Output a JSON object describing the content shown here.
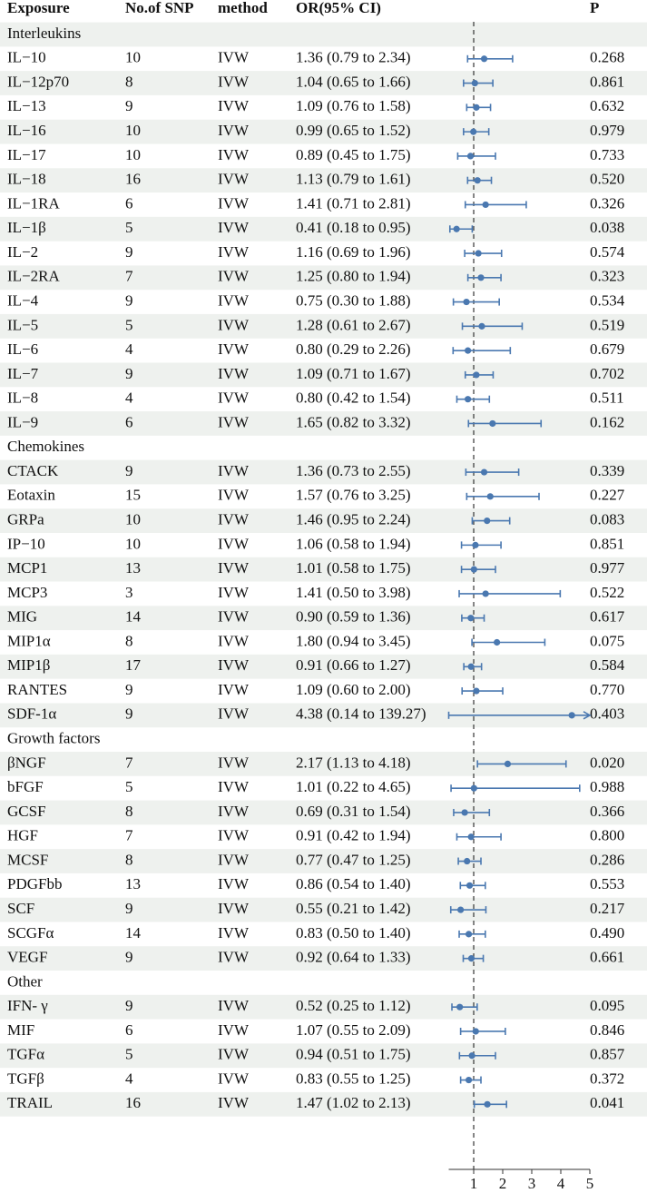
{
  "chart_data": {
    "type": "forest",
    "columns": [
      "Exposure",
      "No.of SNP",
      "method",
      "OR(95% CI)",
      "P"
    ],
    "xlim": [
      0.14,
      5
    ],
    "xticks": [
      1,
      2,
      3,
      4,
      5
    ],
    "ref_line": 1,
    "color": "#4a78b0",
    "highlight_color": "#e8191b",
    "groups": [
      {
        "name": "Interleukins",
        "rows": [
          {
            "exposure": "IL−10",
            "snp": 10,
            "method": "IVW",
            "or_ci": "1.36 (0.79 to 2.34)",
            "p": "0.268",
            "or": 1.36,
            "lower": 0.79,
            "upper": 2.34
          },
          {
            "exposure": "IL−12p70",
            "snp": 8,
            "method": "IVW",
            "or_ci": "1.04 (0.65 to 1.66)",
            "p": "0.861",
            "or": 1.04,
            "lower": 0.65,
            "upper": 1.66
          },
          {
            "exposure": "IL−13",
            "snp": 9,
            "method": "IVW",
            "or_ci": "1.09 (0.76 to 1.58)",
            "p": "0.632",
            "or": 1.09,
            "lower": 0.76,
            "upper": 1.58
          },
          {
            "exposure": "IL−16",
            "snp": 10,
            "method": "IVW",
            "or_ci": "0.99 (0.65 to 1.52)",
            "p": "0.979",
            "or": 0.99,
            "lower": 0.65,
            "upper": 1.52
          },
          {
            "exposure": "IL−17",
            "snp": 10,
            "method": "IVW",
            "or_ci": "0.89 (0.45 to 1.75)",
            "p": "0.733",
            "or": 0.89,
            "lower": 0.45,
            "upper": 1.75
          },
          {
            "exposure": "IL−18",
            "snp": 16,
            "method": "IVW",
            "or_ci": "1.13 (0.79 to 1.61)",
            "p": "0.520",
            "or": 1.13,
            "lower": 0.79,
            "upper": 1.61
          },
          {
            "exposure": "IL−1RA",
            "snp": 6,
            "method": "IVW",
            "or_ci": "1.41 (0.71 to 2.81)",
            "p": "0.326",
            "or": 1.41,
            "lower": 0.71,
            "upper": 2.81
          },
          {
            "exposure": "IL−1β",
            "snp": 5,
            "method": "IVW",
            "or_ci": "0.41 (0.18 to 0.95)",
            "p": "0.038",
            "or": 0.41,
            "lower": 0.18,
            "upper": 0.95,
            "highlight": true
          },
          {
            "exposure": "IL−2",
            "snp": 9,
            "method": "IVW",
            "or_ci": "1.16 (0.69 to 1.96)",
            "p": "0.574",
            "or": 1.16,
            "lower": 0.69,
            "upper": 1.96
          },
          {
            "exposure": "IL−2RA",
            "snp": 7,
            "method": "IVW",
            "or_ci": "1.25 (0.80 to 1.94)",
            "p": "0.323",
            "or": 1.25,
            "lower": 0.8,
            "upper": 1.94
          },
          {
            "exposure": "IL−4",
            "snp": 9,
            "method": "IVW",
            "or_ci": "0.75 (0.30 to 1.88)",
            "p": "0.534",
            "or": 0.75,
            "lower": 0.3,
            "upper": 1.88
          },
          {
            "exposure": "IL−5",
            "snp": 5,
            "method": "IVW",
            "or_ci": "1.28 (0.61 to 2.67)",
            "p": "0.519",
            "or": 1.28,
            "lower": 0.61,
            "upper": 2.67
          },
          {
            "exposure": "IL−6",
            "snp": 4,
            "method": "IVW",
            "or_ci": "0.80 (0.29 to 2.26)",
            "p": "0.679",
            "or": 0.8,
            "lower": 0.29,
            "upper": 2.26
          },
          {
            "exposure": "IL−7",
            "snp": 9,
            "method": "IVW",
            "or_ci": "1.09 (0.71 to 1.67)",
            "p": "0.702",
            "or": 1.09,
            "lower": 0.71,
            "upper": 1.67
          },
          {
            "exposure": "IL−8",
            "snp": 4,
            "method": "IVW",
            "or_ci": "0.80 (0.42 to 1.54)",
            "p": "0.511",
            "or": 0.8,
            "lower": 0.42,
            "upper": 1.54
          },
          {
            "exposure": "IL−9",
            "snp": 6,
            "method": "IVW",
            "or_ci": "1.65 (0.82 to 3.32)",
            "p": "0.162",
            "or": 1.65,
            "lower": 0.82,
            "upper": 3.32
          }
        ]
      },
      {
        "name": "Chemokines",
        "rows": [
          {
            "exposure": "CTACK",
            "snp": 9,
            "method": "IVW",
            "or_ci": "1.36 (0.73 to 2.55)",
            "p": "0.339",
            "or": 1.36,
            "lower": 0.73,
            "upper": 2.55
          },
          {
            "exposure": "Eotaxin",
            "snp": 15,
            "method": "IVW",
            "or_ci": "1.57 (0.76 to 3.25)",
            "p": "0.227",
            "or": 1.57,
            "lower": 0.76,
            "upper": 3.25
          },
          {
            "exposure": "GRPa",
            "snp": 10,
            "method": "IVW",
            "or_ci": "1.46 (0.95 to 2.24)",
            "p": "0.083",
            "or": 1.46,
            "lower": 0.95,
            "upper": 2.24
          },
          {
            "exposure": "IP−10",
            "snp": 10,
            "method": "IVW",
            "or_ci": "1.06 (0.58 to 1.94)",
            "p": "0.851",
            "or": 1.06,
            "lower": 0.58,
            "upper": 1.94
          },
          {
            "exposure": "MCP1",
            "snp": 13,
            "method": "IVW",
            "or_ci": "1.01 (0.58 to 1.75)",
            "p": "0.977",
            "or": 1.01,
            "lower": 0.58,
            "upper": 1.75
          },
          {
            "exposure": "MCP3",
            "snp": 3,
            "method": "IVW",
            "or_ci": "1.41 (0.50 to 3.98)",
            "p": "0.522",
            "or": 1.41,
            "lower": 0.5,
            "upper": 3.98
          },
          {
            "exposure": "MIG",
            "snp": 14,
            "method": "IVW",
            "or_ci": "0.90 (0.59 to 1.36)",
            "p": "0.617",
            "or": 0.9,
            "lower": 0.59,
            "upper": 1.36
          },
          {
            "exposure": "MIP1α",
            "snp": 8,
            "method": "IVW",
            "or_ci": "1.80 (0.94 to 3.45)",
            "p": "0.075",
            "or": 1.8,
            "lower": 0.94,
            "upper": 3.45
          },
          {
            "exposure": "MIP1β",
            "snp": 17,
            "method": "IVW",
            "or_ci": "0.91 (0.66 to 1.27)",
            "p": "0.584",
            "or": 0.91,
            "lower": 0.66,
            "upper": 1.27
          },
          {
            "exposure": "RANTES",
            "snp": 9,
            "method": "IVW",
            "or_ci": "1.09 (0.60 to 2.00)",
            "p": "0.770",
            "or": 1.09,
            "lower": 0.6,
            "upper": 2.0
          },
          {
            "exposure": "SDF-1α",
            "snp": 9,
            "method": "IVW",
            "or_ci": "4.38 (0.14 to 139.27)",
            "p": "0.403",
            "or": 4.38,
            "lower": 0.14,
            "upper": 139.27
          }
        ]
      },
      {
        "name": "Growth factors",
        "rows": [
          {
            "exposure": "βNGF",
            "snp": 7,
            "method": "IVW",
            "or_ci": "2.17 (1.13 to 4.18)",
            "p": "0.020",
            "or": 2.17,
            "lower": 1.13,
            "upper": 4.18,
            "highlight": true
          },
          {
            "exposure": "bFGF",
            "snp": 5,
            "method": "IVW",
            "or_ci": "1.01 (0.22 to 4.65)",
            "p": "0.988",
            "or": 1.01,
            "lower": 0.22,
            "upper": 4.65
          },
          {
            "exposure": "GCSF",
            "snp": 8,
            "method": "IVW",
            "or_ci": "0.69 (0.31 to 1.54)",
            "p": "0.366",
            "or": 0.69,
            "lower": 0.31,
            "upper": 1.54
          },
          {
            "exposure": "HGF",
            "snp": 7,
            "method": "IVW",
            "or_ci": "0.91 (0.42 to 1.94)",
            "p": "0.800",
            "or": 0.91,
            "lower": 0.42,
            "upper": 1.94
          },
          {
            "exposure": "MCSF",
            "snp": 8,
            "method": "IVW",
            "or_ci": "0.77 (0.47 to 1.25)",
            "p": "0.286",
            "or": 0.77,
            "lower": 0.47,
            "upper": 1.25
          },
          {
            "exposure": "PDGFbb",
            "snp": 13,
            "method": "IVW",
            "or_ci": "0.86 (0.54 to 1.40)",
            "p": "0.553",
            "or": 0.86,
            "lower": 0.54,
            "upper": 1.4
          },
          {
            "exposure": "SCF",
            "snp": 9,
            "method": "IVW",
            "or_ci": "0.55 (0.21 to 1.42)",
            "p": "0.217",
            "or": 0.55,
            "lower": 0.21,
            "upper": 1.42
          },
          {
            "exposure": "SCGFα",
            "snp": 14,
            "method": "IVW",
            "or_ci": "0.83 (0.50 to 1.40)",
            "p": "0.490",
            "or": 0.83,
            "lower": 0.5,
            "upper": 1.4
          },
          {
            "exposure": "VEGF",
            "snp": 9,
            "method": "IVW",
            "or_ci": "0.92 (0.64 to 1.33)",
            "p": "0.661",
            "or": 0.92,
            "lower": 0.64,
            "upper": 1.33
          }
        ]
      },
      {
        "name": "Other",
        "rows": [
          {
            "exposure": "IFN- γ",
            "snp": 9,
            "method": "IVW",
            "or_ci": "0.52 (0.25 to 1.12)",
            "p": "0.095",
            "or": 0.52,
            "lower": 0.25,
            "upper": 1.12
          },
          {
            "exposure": "MIF",
            "snp": 6,
            "method": "IVW",
            "or_ci": "1.07 (0.55 to 2.09)",
            "p": "0.846",
            "or": 1.07,
            "lower": 0.55,
            "upper": 2.09
          },
          {
            "exposure": "TGFα",
            "snp": 5,
            "method": "IVW",
            "or_ci": "0.94 (0.51 to 1.75)",
            "p": "0.857",
            "or": 0.94,
            "lower": 0.51,
            "upper": 1.75
          },
          {
            "exposure": "TGFβ",
            "snp": 4,
            "method": "IVW",
            "or_ci": "0.83 (0.55 to 1.25)",
            "p": "0.372",
            "or": 0.83,
            "lower": 0.55,
            "upper": 1.25
          },
          {
            "exposure": "TRAIL",
            "snp": 16,
            "method": "IVW",
            "or_ci": "1.47 (1.02 to 2.13)",
            "p": "0.041",
            "or": 1.47,
            "lower": 1.02,
            "upper": 2.13,
            "highlight": true
          }
        ]
      }
    ]
  }
}
